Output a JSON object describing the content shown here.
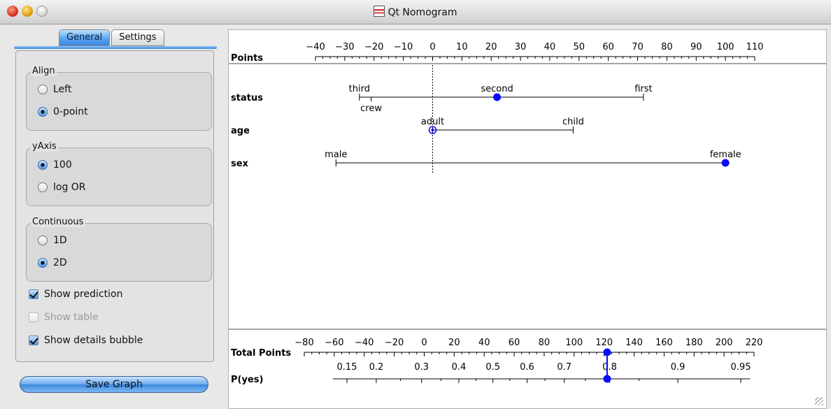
{
  "window": {
    "title": "Qt Nomogram"
  },
  "tabs": [
    {
      "label": "General",
      "active": true
    },
    {
      "label": "Settings",
      "active": false
    }
  ],
  "groups": {
    "align": {
      "title": "Align",
      "options": [
        {
          "label": "Left",
          "selected": false
        },
        {
          "label": "0-point",
          "selected": true
        }
      ]
    },
    "yaxis": {
      "title": "yAxis",
      "options": [
        {
          "label": "100",
          "selected": true
        },
        {
          "label": "log OR",
          "selected": false
        }
      ]
    },
    "continuous": {
      "title": "Continuous",
      "options": [
        {
          "label": "1D",
          "selected": false
        },
        {
          "label": "2D",
          "selected": true
        }
      ]
    }
  },
  "checkboxes": [
    {
      "label": "Show prediction",
      "checked": true,
      "enabled": true
    },
    {
      "label": "Show table",
      "checked": false,
      "enabled": false
    },
    {
      "label": "Show details bubble",
      "checked": true,
      "enabled": true
    }
  ],
  "save_button": "Save Graph",
  "colors": {
    "marker": "#0a0aff",
    "tab_active": "#3a86dc"
  },
  "nomogram": {
    "points_axis": {
      "label": "Points",
      "min": -40,
      "max": 110,
      "ticks": [
        -40,
        -30,
        -20,
        -10,
        0,
        10,
        20,
        30,
        40,
        50,
        60,
        70,
        80,
        90,
        100,
        110
      ]
    },
    "variables": [
      {
        "name": "status",
        "levels": [
          {
            "label": "third",
            "points": -25
          },
          {
            "label": "crew",
            "points": -21
          },
          {
            "label": "second",
            "points": 22
          },
          {
            "label": "first",
            "points": 72
          }
        ],
        "selected": "second"
      },
      {
        "name": "age",
        "levels": [
          {
            "label": "adult",
            "points": 0
          },
          {
            "label": "child",
            "points": 48
          }
        ],
        "selected": "adult"
      },
      {
        "name": "sex",
        "levels": [
          {
            "label": "male",
            "points": -33
          },
          {
            "label": "female",
            "points": 100
          }
        ],
        "selected": "female"
      }
    ],
    "total_axis": {
      "label": "Total Points",
      "min": -80,
      "max": 220,
      "ticks": [
        -80,
        -60,
        -40,
        -20,
        0,
        20,
        40,
        60,
        80,
        100,
        120,
        140,
        160,
        180,
        200,
        220
      ],
      "value": 122
    },
    "prob_axis": {
      "label": "P(yes)",
      "labels": [
        "0.15",
        "0.2",
        "0.3",
        "0.4",
        "0.5",
        "0.6",
        "0.7",
        "0.8",
        "0.9",
        "0.95"
      ],
      "value": 0.8
    }
  }
}
